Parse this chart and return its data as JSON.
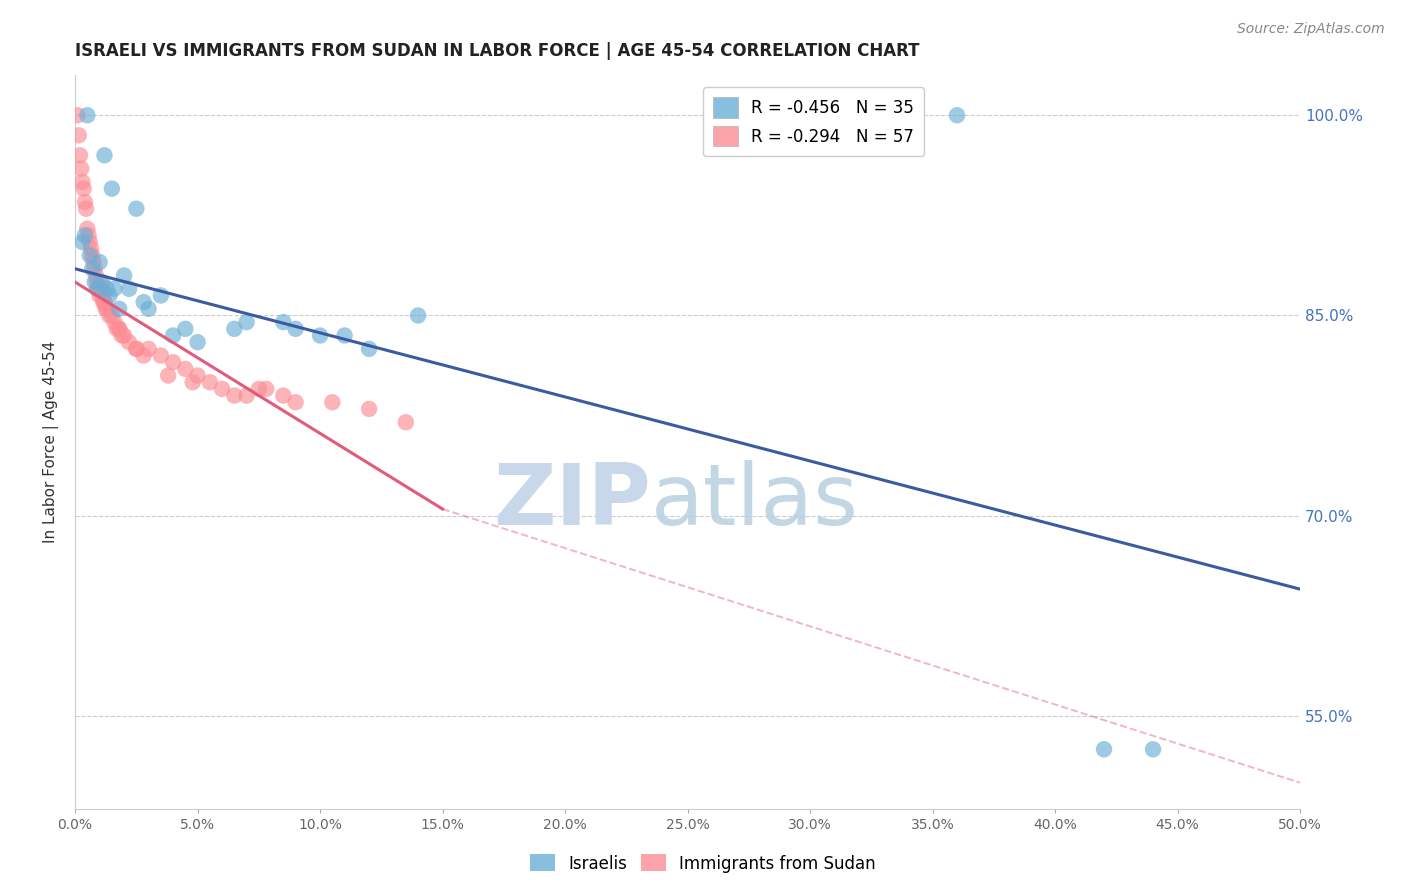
{
  "title": "ISRAELI VS IMMIGRANTS FROM SUDAN IN LABOR FORCE | AGE 45-54 CORRELATION CHART",
  "source": "Source: ZipAtlas.com",
  "ylabel": "In Labor Force | Age 45-54",
  "xlim": [
    0.0,
    50.0
  ],
  "ylim": [
    48.0,
    103.0
  ],
  "legend_blue_r": "R = -0.456",
  "legend_blue_n": "N = 35",
  "legend_pink_r": "R = -0.294",
  "legend_pink_n": "N = 57",
  "blue_color": "#6baed6",
  "pink_color": "#fc8d94",
  "blue_line_color": "#3a5ba0",
  "pink_line_color": "#e05c7a",
  "watermark_zip": "ZIP",
  "watermark_atlas": "atlas",
  "watermark_color": "#c8d8ea",
  "blue_line_x0": 0.0,
  "blue_line_y0": 88.5,
  "blue_line_x1": 50.0,
  "blue_line_y1": 64.5,
  "pink_solid_x0": 0.0,
  "pink_solid_y0": 87.5,
  "pink_solid_x1": 15.0,
  "pink_solid_y1": 70.5,
  "pink_dash_x0": 15.0,
  "pink_dash_y0": 70.5,
  "pink_dash_x1": 50.0,
  "pink_dash_y1": 50.0,
  "israelis_x": [
    0.5,
    1.2,
    1.5,
    2.5,
    0.3,
    0.4,
    0.6,
    0.7,
    0.8,
    1.0,
    1.1,
    1.3,
    1.4,
    1.6,
    2.0,
    2.2,
    3.0,
    3.5,
    4.5,
    6.5,
    7.0,
    8.5,
    10.0,
    11.0,
    12.0,
    14.0,
    36.0,
    42.0,
    44.0,
    0.9,
    1.8,
    4.0,
    5.0,
    9.0,
    2.8
  ],
  "israelis_y": [
    100.0,
    97.0,
    94.5,
    93.0,
    90.5,
    91.0,
    89.5,
    88.5,
    87.5,
    89.0,
    87.5,
    87.0,
    86.5,
    87.0,
    88.0,
    87.0,
    85.5,
    86.5,
    84.0,
    84.0,
    84.5,
    84.5,
    83.5,
    83.5,
    82.5,
    85.0,
    100.0,
    52.5,
    52.5,
    87.0,
    85.5,
    83.5,
    83.0,
    84.0,
    86.0
  ],
  "sudan_x": [
    0.1,
    0.15,
    0.2,
    0.25,
    0.3,
    0.35,
    0.4,
    0.45,
    0.5,
    0.55,
    0.6,
    0.65,
    0.7,
    0.75,
    0.8,
    0.85,
    0.9,
    0.95,
    1.0,
    1.05,
    1.1,
    1.15,
    1.2,
    1.25,
    1.3,
    1.4,
    1.5,
    1.6,
    1.7,
    1.8,
    1.9,
    2.0,
    2.2,
    2.5,
    3.0,
    3.5,
    4.0,
    4.5,
    5.0,
    5.5,
    6.0,
    7.0,
    7.5,
    8.5,
    10.5,
    12.0,
    13.5,
    3.8,
    6.5,
    9.0,
    2.8,
    4.8,
    7.8,
    1.0,
    1.2,
    1.8,
    2.5
  ],
  "sudan_y": [
    100.0,
    98.5,
    97.0,
    96.0,
    95.0,
    94.5,
    93.5,
    93.0,
    91.5,
    91.0,
    90.5,
    90.0,
    89.5,
    89.0,
    88.5,
    88.0,
    87.5,
    87.0,
    87.5,
    87.0,
    86.5,
    86.0,
    86.0,
    85.5,
    85.5,
    85.0,
    85.0,
    84.5,
    84.0,
    84.0,
    83.5,
    83.5,
    83.0,
    82.5,
    82.5,
    82.0,
    81.5,
    81.0,
    80.5,
    80.0,
    79.5,
    79.0,
    79.5,
    79.0,
    78.5,
    78.0,
    77.0,
    80.5,
    79.0,
    78.5,
    82.0,
    80.0,
    79.5,
    86.5,
    86.0,
    84.0,
    82.5
  ],
  "ytick_right_vals": [
    55.0,
    70.0,
    85.0,
    100.0
  ],
  "xtick_vals": [
    0,
    5,
    10,
    15,
    20,
    25,
    30,
    35,
    40,
    45,
    50
  ]
}
